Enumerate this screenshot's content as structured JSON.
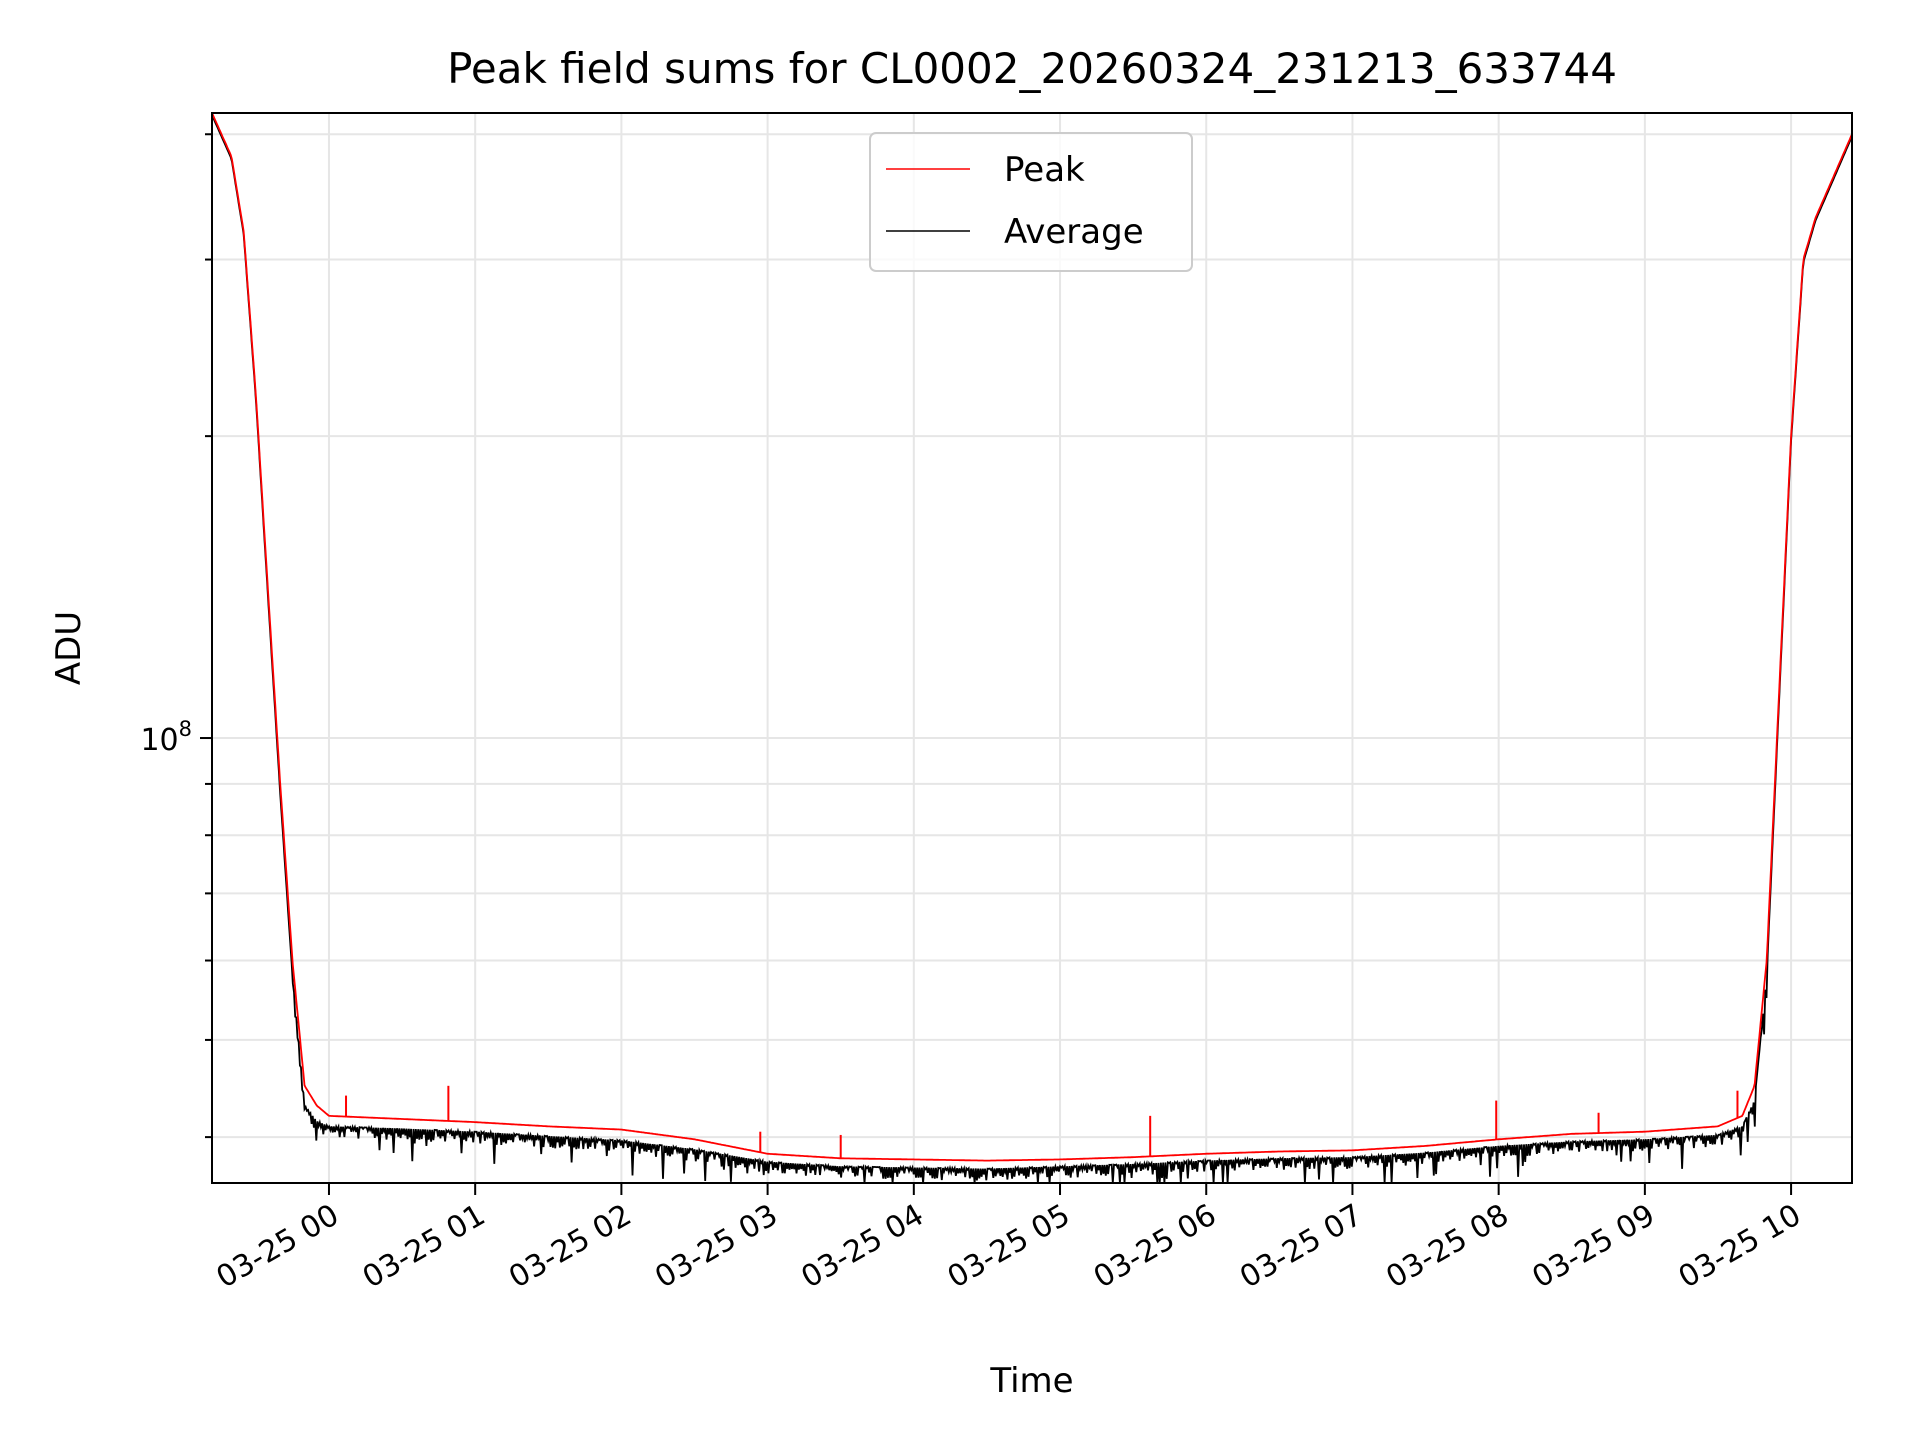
{
  "chart_data": {
    "type": "line",
    "title": "Peak field sums for CL0002_20260324_231213_633744",
    "xlabel": "Time",
    "ylabel": "ADU",
    "yscale": "log",
    "grid": true,
    "legend_position": "top-center",
    "xlim": [
      "2026-03-24 23:12",
      "2026-03-25 10:25"
    ],
    "ylim": [
      36000000,
      420000000
    ],
    "x_ticks": [
      {
        "time": "2026-03-25 00:00",
        "label": "03-25 00"
      },
      {
        "time": "2026-03-25 01:00",
        "label": "03-25 01"
      },
      {
        "time": "2026-03-25 02:00",
        "label": "03-25 02"
      },
      {
        "time": "2026-03-25 03:00",
        "label": "03-25 03"
      },
      {
        "time": "2026-03-25 04:00",
        "label": "03-25 04"
      },
      {
        "time": "2026-03-25 05:00",
        "label": "03-25 05"
      },
      {
        "time": "2026-03-25 06:00",
        "label": "03-25 06"
      },
      {
        "time": "2026-03-25 07:00",
        "label": "03-25 07"
      },
      {
        "time": "2026-03-25 08:00",
        "label": "03-25 08"
      },
      {
        "time": "2026-03-25 09:00",
        "label": "03-25 09"
      },
      {
        "time": "2026-03-25 10:00",
        "label": "03-25 10"
      }
    ],
    "y_major_tick": {
      "value": 100000000,
      "base": "10",
      "exponent": "8"
    },
    "series": [
      {
        "name": "Peak",
        "color": "#ff0000",
        "x": [
          "2026-03-24 23:12",
          "2026-03-24 23:20",
          "2026-03-24 23:25",
          "2026-03-24 23:30",
          "2026-03-24 23:35",
          "2026-03-24 23:40",
          "2026-03-24 23:45",
          "2026-03-24 23:50",
          "2026-03-24 23:55",
          "2026-03-25 00:00",
          "2026-03-25 00:30",
          "2026-03-25 01:00",
          "2026-03-25 01:30",
          "2026-03-25 02:00",
          "2026-03-25 02:30",
          "2026-03-25 03:00",
          "2026-03-25 03:30",
          "2026-03-25 04:00",
          "2026-03-25 04:30",
          "2026-03-25 05:00",
          "2026-03-25 05:30",
          "2026-03-25 06:00",
          "2026-03-25 06:30",
          "2026-03-25 07:00",
          "2026-03-25 07:30",
          "2026-03-25 08:00",
          "2026-03-25 08:30",
          "2026-03-25 09:00",
          "2026-03-25 09:30",
          "2026-03-25 09:40",
          "2026-03-25 09:45",
          "2026-03-25 09:50",
          "2026-03-25 09:55",
          "2026-03-25 10:00",
          "2026-03-25 10:05",
          "2026-03-25 10:10",
          "2026-03-25 10:25"
        ],
        "values": [
          420000000,
          380000000,
          320000000,
          220000000,
          140000000,
          90000000,
          60000000,
          45000000,
          43000000,
          42000000,
          41700000,
          41400000,
          41000000,
          40700000,
          39800000,
          38500000,
          38100000,
          38000000,
          37900000,
          38000000,
          38200000,
          38500000,
          38700000,
          38800000,
          39200000,
          39800000,
          40300000,
          40500000,
          41000000,
          42000000,
          45000000,
          60000000,
          110000000,
          200000000,
          300000000,
          330000000,
          400000000
        ],
        "spikes": [
          {
            "x": "2026-03-25 00:07",
            "value": 44000000
          },
          {
            "x": "2026-03-25 00:49",
            "value": 45000000
          },
          {
            "x": "2026-03-25 02:57",
            "value": 40500000
          },
          {
            "x": "2026-03-25 03:30",
            "value": 40200000
          },
          {
            "x": "2026-03-25 05:37",
            "value": 42000000
          },
          {
            "x": "2026-03-25 07:59",
            "value": 43500000
          },
          {
            "x": "2026-03-25 08:41",
            "value": 42300000
          },
          {
            "x": "2026-03-25 09:38",
            "value": 44500000
          }
        ]
      },
      {
        "name": "Average",
        "color": "#000000",
        "x": [
          "2026-03-24 23:12",
          "2026-03-24 23:20",
          "2026-03-24 23:25",
          "2026-03-24 23:30",
          "2026-03-24 23:35",
          "2026-03-24 23:40",
          "2026-03-24 23:45",
          "2026-03-24 23:50",
          "2026-03-24 23:55",
          "2026-03-25 00:00",
          "2026-03-25 00:30",
          "2026-03-25 01:00",
          "2026-03-25 01:30",
          "2026-03-25 02:00",
          "2026-03-25 02:30",
          "2026-03-25 03:00",
          "2026-03-25 03:30",
          "2026-03-25 04:00",
          "2026-03-25 04:30",
          "2026-03-25 05:00",
          "2026-03-25 05:30",
          "2026-03-25 06:00",
          "2026-03-25 06:30",
          "2026-03-25 07:00",
          "2026-03-25 07:30",
          "2026-03-25 08:00",
          "2026-03-25 08:30",
          "2026-03-25 09:00",
          "2026-03-25 09:30",
          "2026-03-25 09:40",
          "2026-03-25 09:45",
          "2026-03-25 09:50",
          "2026-03-25 09:55",
          "2026-03-25 10:00",
          "2026-03-25 10:05",
          "2026-03-25 10:10",
          "2026-03-25 10:25"
        ],
        "values": [
          418000000,
          378000000,
          318000000,
          218000000,
          138000000,
          88000000,
          58000000,
          43000000,
          41500000,
          41000000,
          40800000,
          40500000,
          40100000,
          39700000,
          38900000,
          37800000,
          37400000,
          37300000,
          37200000,
          37400000,
          37600000,
          37900000,
          38100000,
          38200000,
          38600000,
          39200000,
          39600000,
          39800000,
          40200000,
          41000000,
          43500000,
          58000000,
          108000000,
          198000000,
          298000000,
          328000000,
          398000000
        ],
        "noise_floor": 36000000
      }
    ]
  }
}
